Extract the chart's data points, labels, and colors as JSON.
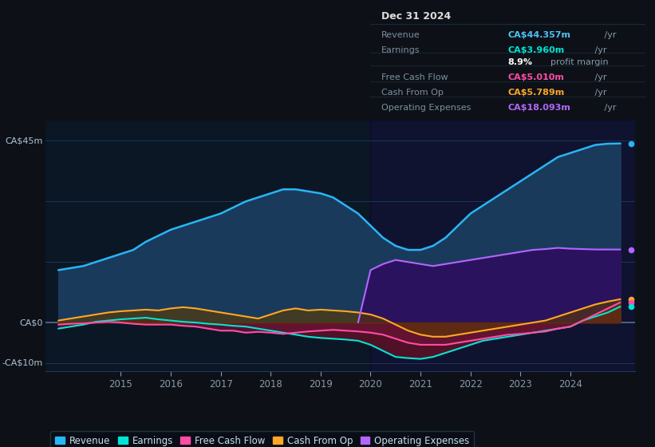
{
  "bg_color": "#0d1117",
  "plot_bg_color": "#0e1d2e",
  "title_box_bg": "#050a0f",
  "ylim": [
    -12,
    50
  ],
  "xlim_start": 2013.5,
  "xlim_end": 2025.3,
  "xticks": [
    2015,
    2016,
    2017,
    2018,
    2019,
    2020,
    2021,
    2022,
    2023,
    2024
  ],
  "ylabel_top": "CA$45m",
  "ylabel_zero": "CA$0",
  "ylabel_bottom": "-CA$10m",
  "y_top_val": 45,
  "y_zero_val": 0,
  "y_bottom_val": -10,
  "Revenue": {
    "color": "#29b6f6",
    "fill": "#1a3a5c",
    "lw": 1.8,
    "x": [
      2013.75,
      2014.0,
      2014.25,
      2014.5,
      2014.75,
      2015.0,
      2015.25,
      2015.5,
      2015.75,
      2016.0,
      2016.25,
      2016.5,
      2016.75,
      2017.0,
      2017.25,
      2017.5,
      2017.75,
      2018.0,
      2018.25,
      2018.5,
      2018.75,
      2019.0,
      2019.25,
      2019.5,
      2019.75,
      2020.0,
      2020.25,
      2020.5,
      2020.75,
      2021.0,
      2021.25,
      2021.5,
      2021.75,
      2022.0,
      2022.25,
      2022.5,
      2022.75,
      2023.0,
      2023.25,
      2023.5,
      2023.75,
      2024.0,
      2024.25,
      2024.5,
      2024.75,
      2025.0
    ],
    "y": [
      13,
      13.5,
      14,
      15,
      16,
      17,
      18,
      20,
      21.5,
      23,
      24,
      25,
      26,
      27,
      28.5,
      30,
      31,
      32,
      33,
      33,
      32.5,
      32,
      31,
      29,
      27,
      24,
      21,
      19,
      18,
      18,
      19,
      21,
      24,
      27,
      29,
      31,
      33,
      35,
      37,
      39,
      41,
      42,
      43,
      44,
      44.3,
      44.357
    ]
  },
  "Earnings": {
    "color": "#00e5d4",
    "fill_pos": "#1a4a3a",
    "fill_neg": "#3a1020",
    "lw": 1.5,
    "x": [
      2013.75,
      2014.0,
      2014.25,
      2014.5,
      2014.75,
      2015.0,
      2015.25,
      2015.5,
      2015.75,
      2016.0,
      2016.25,
      2016.5,
      2016.75,
      2017.0,
      2017.25,
      2017.5,
      2017.75,
      2018.0,
      2018.25,
      2018.5,
      2018.75,
      2019.0,
      2019.25,
      2019.5,
      2019.75,
      2020.0,
      2020.25,
      2020.5,
      2020.75,
      2021.0,
      2021.25,
      2021.5,
      2021.75,
      2022.0,
      2022.25,
      2022.5,
      2022.75,
      2023.0,
      2023.25,
      2023.5,
      2023.75,
      2024.0,
      2024.25,
      2024.5,
      2024.75,
      2025.0
    ],
    "y": [
      -1.5,
      -1.0,
      -0.5,
      0.2,
      0.5,
      0.8,
      1.0,
      1.2,
      0.8,
      0.5,
      0.2,
      0.0,
      -0.3,
      -0.5,
      -0.8,
      -1.0,
      -1.5,
      -2.0,
      -2.5,
      -3.0,
      -3.5,
      -3.8,
      -4.0,
      -4.2,
      -4.5,
      -5.5,
      -7.0,
      -8.5,
      -8.8,
      -9.0,
      -8.5,
      -7.5,
      -6.5,
      -5.5,
      -4.5,
      -4.0,
      -3.5,
      -3.0,
      -2.5,
      -2.0,
      -1.5,
      -1.0,
      0.5,
      1.5,
      2.5,
      3.96
    ]
  },
  "FreeCashFlow": {
    "color": "#ff4da6",
    "fill": "#6b1535",
    "lw": 1.5,
    "x": [
      2013.75,
      2014.0,
      2014.25,
      2014.5,
      2014.75,
      2015.0,
      2015.25,
      2015.5,
      2015.75,
      2016.0,
      2016.25,
      2016.5,
      2016.75,
      2017.0,
      2017.25,
      2017.5,
      2017.75,
      2018.0,
      2018.25,
      2018.5,
      2018.75,
      2019.0,
      2019.25,
      2019.5,
      2019.75,
      2020.0,
      2020.25,
      2020.5,
      2020.75,
      2021.0,
      2021.25,
      2021.5,
      2021.75,
      2022.0,
      2022.25,
      2022.5,
      2022.75,
      2023.0,
      2023.25,
      2023.5,
      2023.75,
      2024.0,
      2024.25,
      2024.5,
      2024.75,
      2025.0
    ],
    "y": [
      -0.5,
      -0.3,
      -0.2,
      0.0,
      0.2,
      0.0,
      -0.3,
      -0.5,
      -0.5,
      -0.5,
      -0.8,
      -1.0,
      -1.5,
      -2.0,
      -2.0,
      -2.5,
      -2.3,
      -2.5,
      -2.8,
      -2.5,
      -2.2,
      -2.0,
      -1.8,
      -2.0,
      -2.2,
      -2.5,
      -3.0,
      -4.0,
      -5.0,
      -5.5,
      -5.5,
      -5.5,
      -5.0,
      -4.5,
      -4.0,
      -3.5,
      -3.0,
      -2.8,
      -2.5,
      -2.2,
      -1.5,
      -1.0,
      0.5,
      2.0,
      3.5,
      5.01
    ]
  },
  "CashFromOp": {
    "color": "#ffa726",
    "fill": "#5c3a00",
    "lw": 1.5,
    "x": [
      2013.75,
      2014.0,
      2014.25,
      2014.5,
      2014.75,
      2015.0,
      2015.25,
      2015.5,
      2015.75,
      2016.0,
      2016.25,
      2016.5,
      2016.75,
      2017.0,
      2017.25,
      2017.5,
      2017.75,
      2018.0,
      2018.25,
      2018.5,
      2018.75,
      2019.0,
      2019.25,
      2019.5,
      2019.75,
      2020.0,
      2020.25,
      2020.5,
      2020.75,
      2021.0,
      2021.25,
      2021.5,
      2021.75,
      2022.0,
      2022.25,
      2022.5,
      2022.75,
      2023.0,
      2023.25,
      2023.5,
      2023.75,
      2024.0,
      2024.25,
      2024.5,
      2024.75,
      2025.0
    ],
    "y": [
      0.5,
      1.0,
      1.5,
      2.0,
      2.5,
      2.8,
      3.0,
      3.2,
      3.0,
      3.5,
      3.8,
      3.5,
      3.0,
      2.5,
      2.0,
      1.5,
      1.0,
      2.0,
      3.0,
      3.5,
      3.0,
      3.2,
      3.0,
      2.8,
      2.5,
      2.0,
      1.0,
      -0.5,
      -2.0,
      -3.0,
      -3.5,
      -3.5,
      -3.0,
      -2.5,
      -2.0,
      -1.5,
      -1.0,
      -0.5,
      0.0,
      0.5,
      1.5,
      2.5,
      3.5,
      4.5,
      5.2,
      5.789
    ]
  },
  "OperatingExpenses": {
    "color": "#b366ff",
    "fill": "#2d1060",
    "lw": 1.5,
    "x": [
      2019.75,
      2020.0,
      2020.25,
      2020.5,
      2020.75,
      2021.0,
      2021.25,
      2021.5,
      2021.75,
      2022.0,
      2022.25,
      2022.5,
      2022.75,
      2023.0,
      2023.25,
      2023.5,
      2023.75,
      2024.0,
      2024.25,
      2024.5,
      2024.75,
      2025.0
    ],
    "y": [
      0,
      13.0,
      14.5,
      15.5,
      15.0,
      14.5,
      14.0,
      14.5,
      15.0,
      15.5,
      16.0,
      16.5,
      17.0,
      17.5,
      18.0,
      18.2,
      18.5,
      18.3,
      18.2,
      18.1,
      18.1,
      18.093
    ]
  },
  "highlight_x": 2020.0,
  "highlight_color": "#100a30",
  "highlight_alpha": 0.5,
  "dark_rect_x": 2013.5,
  "dark_rect_color": "#080f18",
  "grid_color": "#1e3a5f",
  "zero_line_color": "#5a7090",
  "text_color": "#8899aa",
  "label_color": "#b0c4d8",
  "legend_items": [
    {
      "label": "Revenue",
      "color": "#29b6f6"
    },
    {
      "label": "Earnings",
      "color": "#00e5d4"
    },
    {
      "label": "Free Cash Flow",
      "color": "#ff4da6"
    },
    {
      "label": "Cash From Op",
      "color": "#ffa726"
    },
    {
      "label": "Operating Expenses",
      "color": "#b366ff"
    }
  ],
  "infobox": {
    "date": "Dec 31 2024",
    "rows": [
      {
        "label": "Revenue",
        "value": "CA$44.357m",
        "unit": "/yr",
        "val_color": "#4fc3f7"
      },
      {
        "label": "Earnings",
        "value": "CA$3.960m",
        "unit": "/yr",
        "val_color": "#00e5d4"
      },
      {
        "label": "",
        "value": "8.9%",
        "unit": " profit margin",
        "val_color": "#ffffff"
      },
      {
        "label": "Free Cash Flow",
        "value": "CA$5.010m",
        "unit": "/yr",
        "val_color": "#ff4da6"
      },
      {
        "label": "Cash From Op",
        "value": "CA$5.789m",
        "unit": "/yr",
        "val_color": "#ffa726"
      },
      {
        "label": "Operating Expenses",
        "value": "CA$18.093m",
        "unit": "/yr",
        "val_color": "#b366ff"
      }
    ]
  }
}
